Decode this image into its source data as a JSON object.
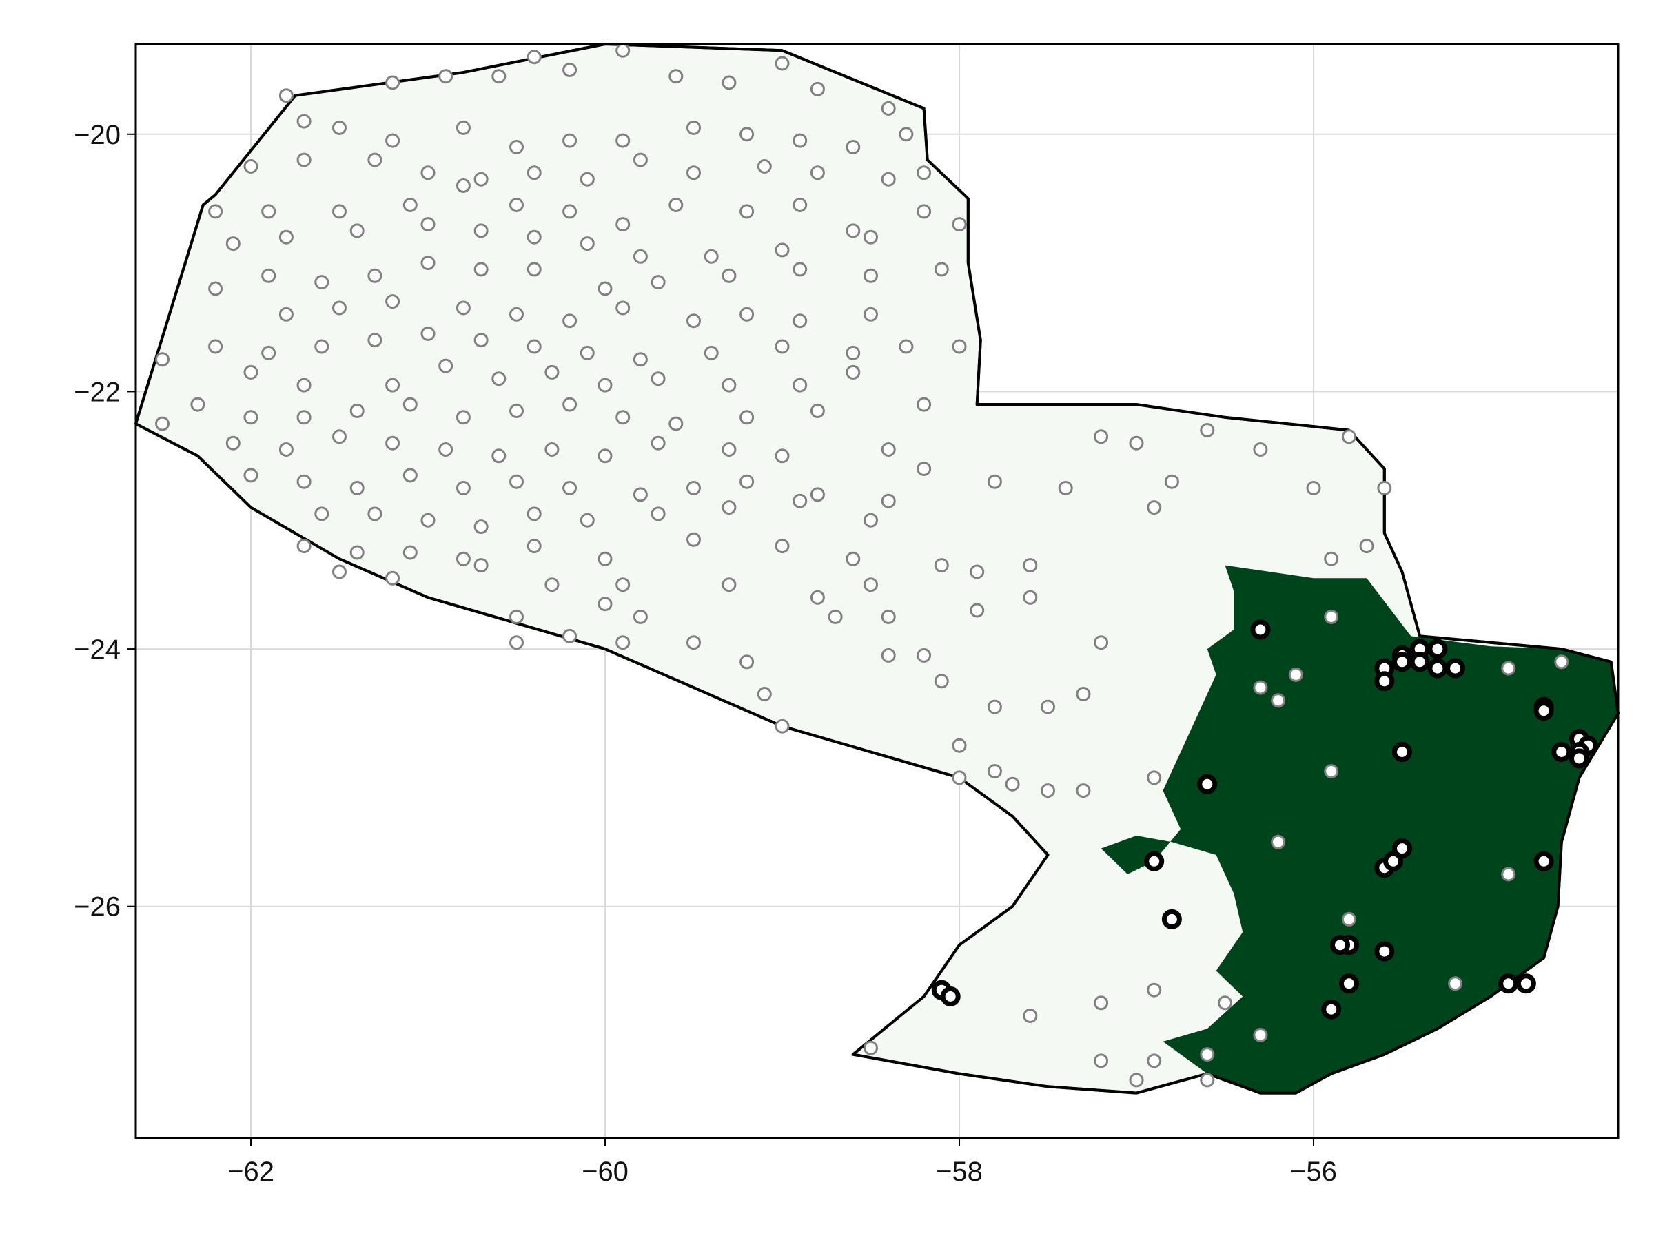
{
  "colors": {
    "land": "#f4faf3",
    "forest": "#00441b",
    "border": "#000000",
    "sample_point_stroke": "#808080",
    "presence_point_stroke": "#000000",
    "grid": "#d9d9d9"
  },
  "chart_data": {
    "type": "scatter",
    "title": "",
    "xlabel": "",
    "ylabel": "",
    "xlim": [
      -62.65,
      -54.28
    ],
    "ylim": [
      -27.8,
      -19.3
    ],
    "grid": true,
    "x_ticks": [
      -62,
      -60,
      -58,
      -56
    ],
    "y_ticks": [
      -20,
      -22,
      -24,
      -26
    ],
    "x_tick_labels": [
      "−62",
      "−60",
      "−58",
      "−56"
    ],
    "y_tick_labels": [
      "−20",
      "−22",
      "−24",
      "−26"
    ],
    "country_outline": [
      [
        -62.65,
        -22.25
      ],
      [
        -62.27,
        -20.55
      ],
      [
        -62.2,
        -20.47
      ],
      [
        -61.75,
        -19.7
      ],
      [
        -60.8,
        -19.52
      ],
      [
        -60.0,
        -19.3
      ],
      [
        -59.0,
        -19.35
      ],
      [
        -58.2,
        -19.8
      ],
      [
        -58.18,
        -20.2
      ],
      [
        -57.95,
        -20.5
      ],
      [
        -57.95,
        -21.0
      ],
      [
        -57.88,
        -21.6
      ],
      [
        -57.9,
        -22.1
      ],
      [
        -57.0,
        -22.1
      ],
      [
        -56.5,
        -22.2
      ],
      [
        -55.8,
        -22.3
      ],
      [
        -55.6,
        -22.6
      ],
      [
        -55.6,
        -23.1
      ],
      [
        -55.5,
        -23.4
      ],
      [
        -55.4,
        -23.9
      ],
      [
        -55.0,
        -23.95
      ],
      [
        -54.6,
        -24.0
      ],
      [
        -54.32,
        -24.1
      ],
      [
        -54.28,
        -24.5
      ],
      [
        -54.5,
        -25.0
      ],
      [
        -54.6,
        -25.5
      ],
      [
        -54.62,
        -26.0
      ],
      [
        -54.7,
        -26.4
      ],
      [
        -55.0,
        -26.7
      ],
      [
        -55.3,
        -26.95
      ],
      [
        -55.6,
        -27.15
      ],
      [
        -55.9,
        -27.3
      ],
      [
        -56.1,
        -27.45
      ],
      [
        -56.3,
        -27.45
      ],
      [
        -56.6,
        -27.3
      ],
      [
        -57.0,
        -27.45
      ],
      [
        -57.5,
        -27.4
      ],
      [
        -58.0,
        -27.3
      ],
      [
        -58.6,
        -27.15
      ],
      [
        -58.2,
        -26.7
      ],
      [
        -58.0,
        -26.3
      ],
      [
        -57.7,
        -26.0
      ],
      [
        -57.5,
        -25.6
      ],
      [
        -57.7,
        -25.3
      ],
      [
        -58.0,
        -25.0
      ],
      [
        -58.5,
        -24.8
      ],
      [
        -59.0,
        -24.6
      ],
      [
        -59.5,
        -24.3
      ],
      [
        -60.0,
        -24.0
      ],
      [
        -60.5,
        -23.8
      ],
      [
        -61.0,
        -23.6
      ],
      [
        -61.5,
        -23.3
      ],
      [
        -62.0,
        -22.9
      ],
      [
        -62.3,
        -22.5
      ],
      [
        -62.65,
        -22.25
      ]
    ],
    "forest_outline": [
      [
        -56.5,
        -23.35
      ],
      [
        -56.0,
        -23.45
      ],
      [
        -55.7,
        -23.45
      ],
      [
        -55.45,
        -23.9
      ],
      [
        -55.0,
        -23.98
      ],
      [
        -54.6,
        -24.0
      ],
      [
        -54.32,
        -24.1
      ],
      [
        -54.28,
        -24.5
      ],
      [
        -54.5,
        -25.0
      ],
      [
        -54.6,
        -25.5
      ],
      [
        -54.62,
        -26.0
      ],
      [
        -54.7,
        -26.4
      ],
      [
        -55.0,
        -26.7
      ],
      [
        -55.3,
        -26.95
      ],
      [
        -55.6,
        -27.15
      ],
      [
        -55.9,
        -27.3
      ],
      [
        -56.1,
        -27.45
      ],
      [
        -56.3,
        -27.45
      ],
      [
        -56.6,
        -27.3
      ],
      [
        -56.85,
        -27.05
      ],
      [
        -56.6,
        -26.95
      ],
      [
        -56.4,
        -26.7
      ],
      [
        -56.55,
        -26.5
      ],
      [
        -56.4,
        -26.2
      ],
      [
        -56.45,
        -25.9
      ],
      [
        -56.55,
        -25.6
      ],
      [
        -56.8,
        -25.5
      ],
      [
        -57.0,
        -25.45
      ],
      [
        -57.2,
        -25.55
      ],
      [
        -57.05,
        -25.75
      ],
      [
        -56.9,
        -25.65
      ],
      [
        -56.75,
        -25.4
      ],
      [
        -56.85,
        -25.1
      ],
      [
        -56.75,
        -24.8
      ],
      [
        -56.65,
        -24.5
      ],
      [
        -56.55,
        -24.2
      ],
      [
        -56.6,
        -24.0
      ],
      [
        -56.45,
        -23.85
      ],
      [
        -56.45,
        -23.55
      ],
      [
        -56.5,
        -23.35
      ]
    ],
    "sample_points": [
      [
        -61.8,
        -19.7
      ],
      [
        -61.2,
        -19.6
      ],
      [
        -60.9,
        -19.55
      ],
      [
        -60.6,
        -19.55
      ],
      [
        -60.4,
        -19.4
      ],
      [
        -60.2,
        -19.5
      ],
      [
        -59.9,
        -19.35
      ],
      [
        -59.6,
        -19.55
      ],
      [
        -59.3,
        -19.6
      ],
      [
        -59.0,
        -19.45
      ],
      [
        -58.8,
        -19.65
      ],
      [
        -58.4,
        -19.8
      ],
      [
        -61.7,
        -19.9
      ],
      [
        -61.5,
        -19.95
      ],
      [
        -61.2,
        -20.05
      ],
      [
        -60.8,
        -19.95
      ],
      [
        -60.5,
        -20.1
      ],
      [
        -60.2,
        -20.05
      ],
      [
        -59.9,
        -20.05
      ],
      [
        -59.5,
        -19.95
      ],
      [
        -59.2,
        -20.0
      ],
      [
        -58.9,
        -20.05
      ],
      [
        -58.6,
        -20.1
      ],
      [
        -58.3,
        -20.0
      ],
      [
        -62.0,
        -20.25
      ],
      [
        -61.7,
        -20.2
      ],
      [
        -61.3,
        -20.2
      ],
      [
        -61.0,
        -20.3
      ],
      [
        -60.7,
        -20.35
      ],
      [
        -60.4,
        -20.3
      ],
      [
        -60.1,
        -20.35
      ],
      [
        -59.8,
        -20.2
      ],
      [
        -59.5,
        -20.3
      ],
      [
        -59.1,
        -20.25
      ],
      [
        -58.8,
        -20.3
      ],
      [
        -58.4,
        -20.35
      ],
      [
        -58.2,
        -20.3
      ],
      [
        -62.2,
        -20.6
      ],
      [
        -61.9,
        -20.6
      ],
      [
        -61.5,
        -20.6
      ],
      [
        -61.1,
        -20.55
      ],
      [
        -60.8,
        -20.4
      ],
      [
        -60.5,
        -20.55
      ],
      [
        -60.2,
        -20.6
      ],
      [
        -59.9,
        -20.7
      ],
      [
        -59.6,
        -20.55
      ],
      [
        -59.2,
        -20.6
      ],
      [
        -58.9,
        -20.55
      ],
      [
        -58.6,
        -20.75
      ],
      [
        -58.2,
        -20.6
      ],
      [
        -62.1,
        -20.85
      ],
      [
        -61.8,
        -20.8
      ],
      [
        -61.4,
        -20.75
      ],
      [
        -61.0,
        -20.7
      ],
      [
        -60.7,
        -20.75
      ],
      [
        -60.4,
        -20.8
      ],
      [
        -60.1,
        -20.85
      ],
      [
        -59.8,
        -20.95
      ],
      [
        -59.4,
        -20.95
      ],
      [
        -59.0,
        -20.9
      ],
      [
        -58.5,
        -20.8
      ],
      [
        -58.0,
        -20.7
      ],
      [
        -62.2,
        -21.2
      ],
      [
        -61.9,
        -21.1
      ],
      [
        -61.6,
        -21.15
      ],
      [
        -61.3,
        -21.1
      ],
      [
        -61.0,
        -21.0
      ],
      [
        -60.7,
        -21.05
      ],
      [
        -60.4,
        -21.05
      ],
      [
        -60.0,
        -21.2
      ],
      [
        -59.7,
        -21.15
      ],
      [
        -59.3,
        -21.1
      ],
      [
        -58.9,
        -21.05
      ],
      [
        -58.5,
        -21.1
      ],
      [
        -58.1,
        -21.05
      ],
      [
        -61.8,
        -21.4
      ],
      [
        -61.5,
        -21.35
      ],
      [
        -61.2,
        -21.3
      ],
      [
        -60.8,
        -21.35
      ],
      [
        -60.5,
        -21.4
      ],
      [
        -60.2,
        -21.45
      ],
      [
        -59.9,
        -21.35
      ],
      [
        -59.5,
        -21.45
      ],
      [
        -59.2,
        -21.4
      ],
      [
        -58.9,
        -21.45
      ],
      [
        -58.5,
        -21.4
      ],
      [
        -62.2,
        -21.65
      ],
      [
        -61.9,
        -21.7
      ],
      [
        -61.6,
        -21.65
      ],
      [
        -61.3,
        -21.6
      ],
      [
        -61.0,
        -21.55
      ],
      [
        -60.7,
        -21.6
      ],
      [
        -60.4,
        -21.65
      ],
      [
        -60.1,
        -21.7
      ],
      [
        -59.8,
        -21.75
      ],
      [
        -59.4,
        -21.7
      ],
      [
        -59.0,
        -21.65
      ],
      [
        -58.6,
        -21.7
      ],
      [
        -58.3,
        -21.65
      ],
      [
        -58.0,
        -21.65
      ],
      [
        -62.5,
        -21.75
      ],
      [
        -62.0,
        -21.85
      ],
      [
        -61.7,
        -21.95
      ],
      [
        -61.2,
        -21.95
      ],
      [
        -60.9,
        -21.8
      ],
      [
        -60.6,
        -21.9
      ],
      [
        -60.3,
        -21.85
      ],
      [
        -60.0,
        -21.95
      ],
      [
        -59.7,
        -21.9
      ],
      [
        -59.3,
        -21.95
      ],
      [
        -58.9,
        -21.95
      ],
      [
        -58.6,
        -21.85
      ],
      [
        -62.3,
        -22.1
      ],
      [
        -62.0,
        -22.2
      ],
      [
        -61.7,
        -22.2
      ],
      [
        -61.4,
        -22.15
      ],
      [
        -61.1,
        -22.1
      ],
      [
        -60.8,
        -22.2
      ],
      [
        -60.5,
        -22.15
      ],
      [
        -60.2,
        -22.1
      ],
      [
        -59.9,
        -22.2
      ],
      [
        -59.6,
        -22.25
      ],
      [
        -59.2,
        -22.2
      ],
      [
        -58.8,
        -22.15
      ],
      [
        -58.2,
        -22.1
      ],
      [
        -62.5,
        -22.25
      ],
      [
        -62.1,
        -22.4
      ],
      [
        -61.8,
        -22.45
      ],
      [
        -61.5,
        -22.35
      ],
      [
        -61.2,
        -22.4
      ],
      [
        -60.9,
        -22.45
      ],
      [
        -60.6,
        -22.5
      ],
      [
        -60.3,
        -22.45
      ],
      [
        -60.0,
        -22.5
      ],
      [
        -59.7,
        -22.4
      ],
      [
        -59.3,
        -22.45
      ],
      [
        -59.0,
        -22.5
      ],
      [
        -58.4,
        -22.45
      ],
      [
        -58.2,
        -22.6
      ],
      [
        -62.0,
        -22.65
      ],
      [
        -61.7,
        -22.7
      ],
      [
        -61.4,
        -22.75
      ],
      [
        -61.1,
        -22.65
      ],
      [
        -60.8,
        -22.75
      ],
      [
        -60.5,
        -22.7
      ],
      [
        -60.2,
        -22.75
      ],
      [
        -59.8,
        -22.8
      ],
      [
        -59.5,
        -22.75
      ],
      [
        -59.2,
        -22.7
      ],
      [
        -58.8,
        -22.8
      ],
      [
        -58.4,
        -22.85
      ],
      [
        -61.6,
        -22.95
      ],
      [
        -61.3,
        -22.95
      ],
      [
        -61.0,
        -23.0
      ],
      [
        -60.7,
        -23.05
      ],
      [
        -60.4,
        -22.95
      ],
      [
        -60.1,
        -23.0
      ],
      [
        -59.7,
        -22.95
      ],
      [
        -59.3,
        -22.9
      ],
      [
        -58.9,
        -22.85
      ],
      [
        -58.5,
        -23.0
      ],
      [
        -57.8,
        -22.7
      ],
      [
        -57.4,
        -22.75
      ],
      [
        -57.2,
        -22.35
      ],
      [
        -57.0,
        -22.4
      ],
      [
        -56.6,
        -22.3
      ],
      [
        -56.3,
        -22.45
      ],
      [
        -55.8,
        -22.35
      ],
      [
        -61.7,
        -23.2
      ],
      [
        -61.4,
        -23.25
      ],
      [
        -61.1,
        -23.25
      ],
      [
        -60.8,
        -23.3
      ],
      [
        -60.4,
        -23.2
      ],
      [
        -60.0,
        -23.3
      ],
      [
        -59.5,
        -23.15
      ],
      [
        -59.0,
        -23.2
      ],
      [
        -58.6,
        -23.3
      ],
      [
        -58.1,
        -23.35
      ],
      [
        -57.9,
        -23.4
      ],
      [
        -57.6,
        -23.35
      ],
      [
        -61.5,
        -23.4
      ],
      [
        -61.2,
        -23.45
      ],
      [
        -60.7,
        -23.35
      ],
      [
        -60.3,
        -23.5
      ],
      [
        -59.9,
        -23.5
      ],
      [
        -59.3,
        -23.5
      ],
      [
        -58.8,
        -23.6
      ],
      [
        -58.5,
        -23.5
      ],
      [
        -57.6,
        -23.6
      ],
      [
        -60.5,
        -23.75
      ],
      [
        -60.0,
        -23.65
      ],
      [
        -59.8,
        -23.75
      ],
      [
        -59.5,
        -23.95
      ],
      [
        -58.7,
        -23.75
      ],
      [
        -58.4,
        -23.75
      ],
      [
        -57.9,
        -23.7
      ],
      [
        -60.5,
        -23.95
      ],
      [
        -60.2,
        -23.9
      ],
      [
        -59.9,
        -23.95
      ],
      [
        -59.2,
        -24.1
      ],
      [
        -58.4,
        -24.05
      ],
      [
        -58.2,
        -24.05
      ],
      [
        -57.2,
        -23.95
      ],
      [
        -59.1,
        -24.35
      ],
      [
        -59.0,
        -24.6
      ],
      [
        -58.1,
        -24.25
      ],
      [
        -57.8,
        -24.45
      ],
      [
        -57.5,
        -24.45
      ],
      [
        -57.3,
        -24.35
      ],
      [
        -58.0,
        -24.75
      ],
      [
        -58.0,
        -25.0
      ],
      [
        -57.8,
        -24.95
      ],
      [
        -57.7,
        -25.05
      ],
      [
        -57.5,
        -25.1
      ],
      [
        -57.3,
        -25.1
      ],
      [
        -56.9,
        -25.0
      ],
      [
        -56.8,
        -22.7
      ],
      [
        -56.9,
        -22.9
      ],
      [
        -56.0,
        -22.75
      ],
      [
        -55.6,
        -22.75
      ],
      [
        -55.9,
        -23.3
      ],
      [
        -55.7,
        -23.2
      ],
      [
        -55.9,
        -23.75
      ],
      [
        -56.1,
        -24.2
      ],
      [
        -56.3,
        -24.3
      ],
      [
        -56.2,
        -24.4
      ],
      [
        -56.2,
        -25.5
      ],
      [
        -55.9,
        -24.95
      ],
      [
        -54.9,
        -24.15
      ],
      [
        -54.6,
        -24.1
      ],
      [
        -54.9,
        -25.75
      ],
      [
        -55.2,
        -26.6
      ],
      [
        -55.8,
        -26.1
      ],
      [
        -56.5,
        -26.75
      ],
      [
        -56.3,
        -27.0
      ],
      [
        -56.6,
        -27.15
      ],
      [
        -56.6,
        -27.35
      ],
      [
        -56.9,
        -27.2
      ],
      [
        -57.0,
        -27.35
      ],
      [
        -57.2,
        -27.2
      ],
      [
        -57.2,
        -26.75
      ],
      [
        -57.6,
        -26.85
      ],
      [
        -56.9,
        -26.65
      ],
      [
        -58.5,
        -27.1
      ]
    ],
    "presence_points": [
      [
        -56.3,
        -23.85
      ],
      [
        -55.4,
        -24.0
      ],
      [
        -55.3,
        -24.0
      ],
      [
        -55.5,
        -24.05
      ],
      [
        -55.4,
        -24.1
      ],
      [
        -55.5,
        -24.1
      ],
      [
        -55.6,
        -24.15
      ],
      [
        -55.3,
        -24.15
      ],
      [
        -55.2,
        -24.15
      ],
      [
        -55.6,
        -24.25
      ],
      [
        -54.7,
        -24.45
      ],
      [
        -54.7,
        -24.48
      ],
      [
        -55.5,
        -24.8
      ],
      [
        -54.5,
        -24.7
      ],
      [
        -54.45,
        -24.75
      ],
      [
        -54.5,
        -24.8
      ],
      [
        -54.6,
        -24.8
      ],
      [
        -54.5,
        -24.85
      ],
      [
        -56.6,
        -25.05
      ],
      [
        -56.9,
        -25.65
      ],
      [
        -55.6,
        -25.7
      ],
      [
        -55.55,
        -25.65
      ],
      [
        -55.5,
        -25.55
      ],
      [
        -54.7,
        -25.65
      ],
      [
        -56.8,
        -26.1
      ],
      [
        -55.8,
        -26.3
      ],
      [
        -55.85,
        -26.3
      ],
      [
        -55.6,
        -26.35
      ],
      [
        -55.8,
        -26.6
      ],
      [
        -55.9,
        -26.8
      ],
      [
        -54.9,
        -26.6
      ],
      [
        -54.8,
        -26.6
      ],
      [
        -58.1,
        -26.65
      ],
      [
        -58.05,
        -26.7
      ]
    ]
  }
}
